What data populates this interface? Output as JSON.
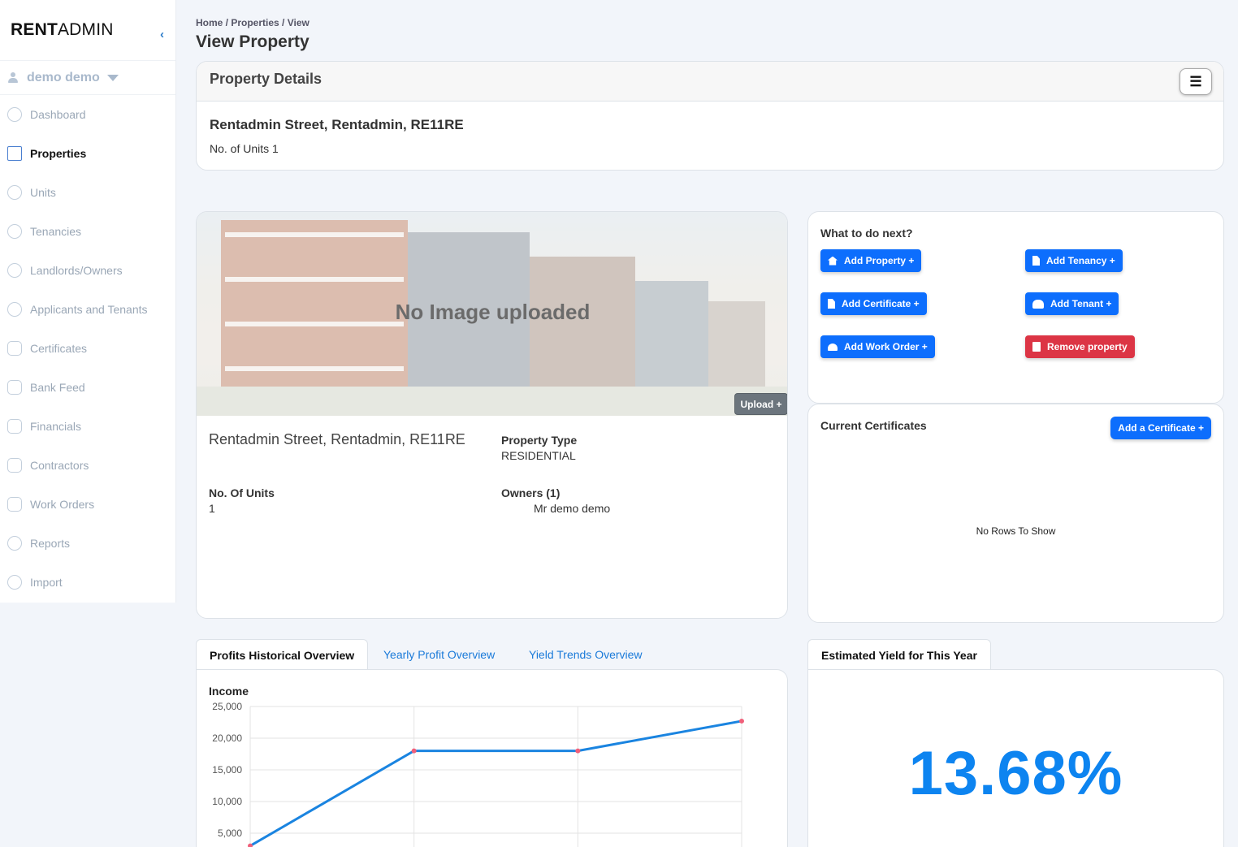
{
  "brand": {
    "bold": "RENT",
    "light": "ADMIN",
    "collapse_icon": "chevron-left-icon"
  },
  "user": {
    "name": "demo demo"
  },
  "sidebar": {
    "items": [
      {
        "label": "Dashboard",
        "icon": "home-icon"
      },
      {
        "label": "Properties",
        "icon": "building-icon",
        "active": true
      },
      {
        "label": "Units",
        "icon": "cube-icon"
      },
      {
        "label": "Tenancies",
        "icon": "coin-icon"
      },
      {
        "label": "Landlords/Owners",
        "icon": "person-icon"
      },
      {
        "label": "Applicants and Tenants",
        "icon": "people-icon"
      },
      {
        "label": "Certificates",
        "icon": "clipboard-icon"
      },
      {
        "label": "Bank Feed",
        "icon": "bank-icon"
      },
      {
        "label": "Financials",
        "icon": "wallet-icon"
      },
      {
        "label": "Contractors",
        "icon": "paint-roller-icon"
      },
      {
        "label": "Work Orders",
        "icon": "list-icon"
      },
      {
        "label": "Reports",
        "icon": "report-icon"
      },
      {
        "label": "Import",
        "icon": "refresh-icon"
      }
    ]
  },
  "breadcrumb": "Home / Properties / View",
  "page_title": "View Property",
  "property_details": {
    "header": "Property Details",
    "address": "Rentadmin Street, Rentadmin, RE11RE",
    "units_text": "No. of Units 1"
  },
  "image_card": {
    "placeholder": "No Image uploaded",
    "upload_label": "Upload +",
    "address": "Rentadmin Street, Rentadmin, RE11RE",
    "property_type_label": "Property Type",
    "property_type_value": "RESIDENTIAL",
    "units_label": "No. Of Units",
    "units_value": "1",
    "owners_label": "Owners (1)",
    "owner_name": "Mr demo demo"
  },
  "next_steps": {
    "title": "What to do next?",
    "buttons": {
      "add_property": "Add Property +",
      "add_tenancy": "Add Tenancy +",
      "add_certificate": "Add Certificate +",
      "add_tenant": "Add Tenant +",
      "add_work_order": "Add Work Order +",
      "remove_property": "Remove property"
    }
  },
  "certificates": {
    "title": "Current Certificates",
    "add_label": "Add a Certificate +",
    "empty_text": "No Rows To Show"
  },
  "tabs": {
    "profits": "Profits Historical Overview",
    "yearly": "Yearly Profit Overview",
    "yield_trends": "Yield Trends Overview",
    "estimated_yield": "Estimated Yield for This Year"
  },
  "estimated_yield": {
    "value": "13.68%"
  },
  "colors": {
    "primary": "#0d6efd",
    "danger": "#dc3545",
    "yield": "#0d84f0",
    "line": "#1a84e0",
    "point": "#f0607a"
  },
  "chart_data": {
    "type": "line",
    "title": "Income",
    "xlabel": "",
    "ylabel": "",
    "ylim": [
      0,
      25000
    ],
    "yticks": [
      5000,
      10000,
      15000,
      20000,
      25000
    ],
    "ytick_labels": [
      "5,000",
      "10,000",
      "15,000",
      "20,000",
      "25,000"
    ],
    "grid": true,
    "series": [
      {
        "values": [
          3000,
          18000,
          18000,
          22700
        ]
      }
    ]
  }
}
